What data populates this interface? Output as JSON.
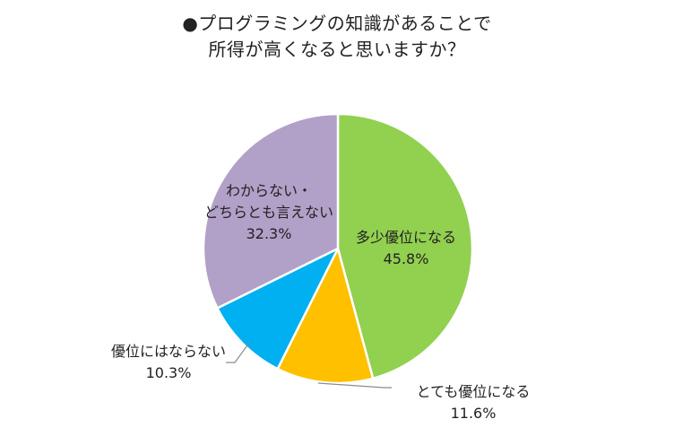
{
  "title_lines": [
    "●プログラミングの知識があることで",
    "所得が高くなると思いますか？"
  ],
  "chart_data": {
    "type": "pie",
    "title": "●プログラミングの知識があることで所得が高くなると思いますか？",
    "slices": [
      {
        "label_lines": [
          "多少優位になる"
        ],
        "value_text": "45.8%",
        "value": 45.8,
        "color": "#92d050"
      },
      {
        "label_lines": [
          "とても優位になる"
        ],
        "value_text": "11.6%",
        "value": 11.6,
        "color": "#ffc000"
      },
      {
        "label_lines": [
          "優位にはならない"
        ],
        "value_text": "10.3%",
        "value": 10.3,
        "color": "#00b0f0"
      },
      {
        "label_lines": [
          "わからない・",
          "どちらとも言えない"
        ],
        "value_text": "32.3%",
        "value": 32.3,
        "color": "#b1a0c7"
      }
    ]
  }
}
